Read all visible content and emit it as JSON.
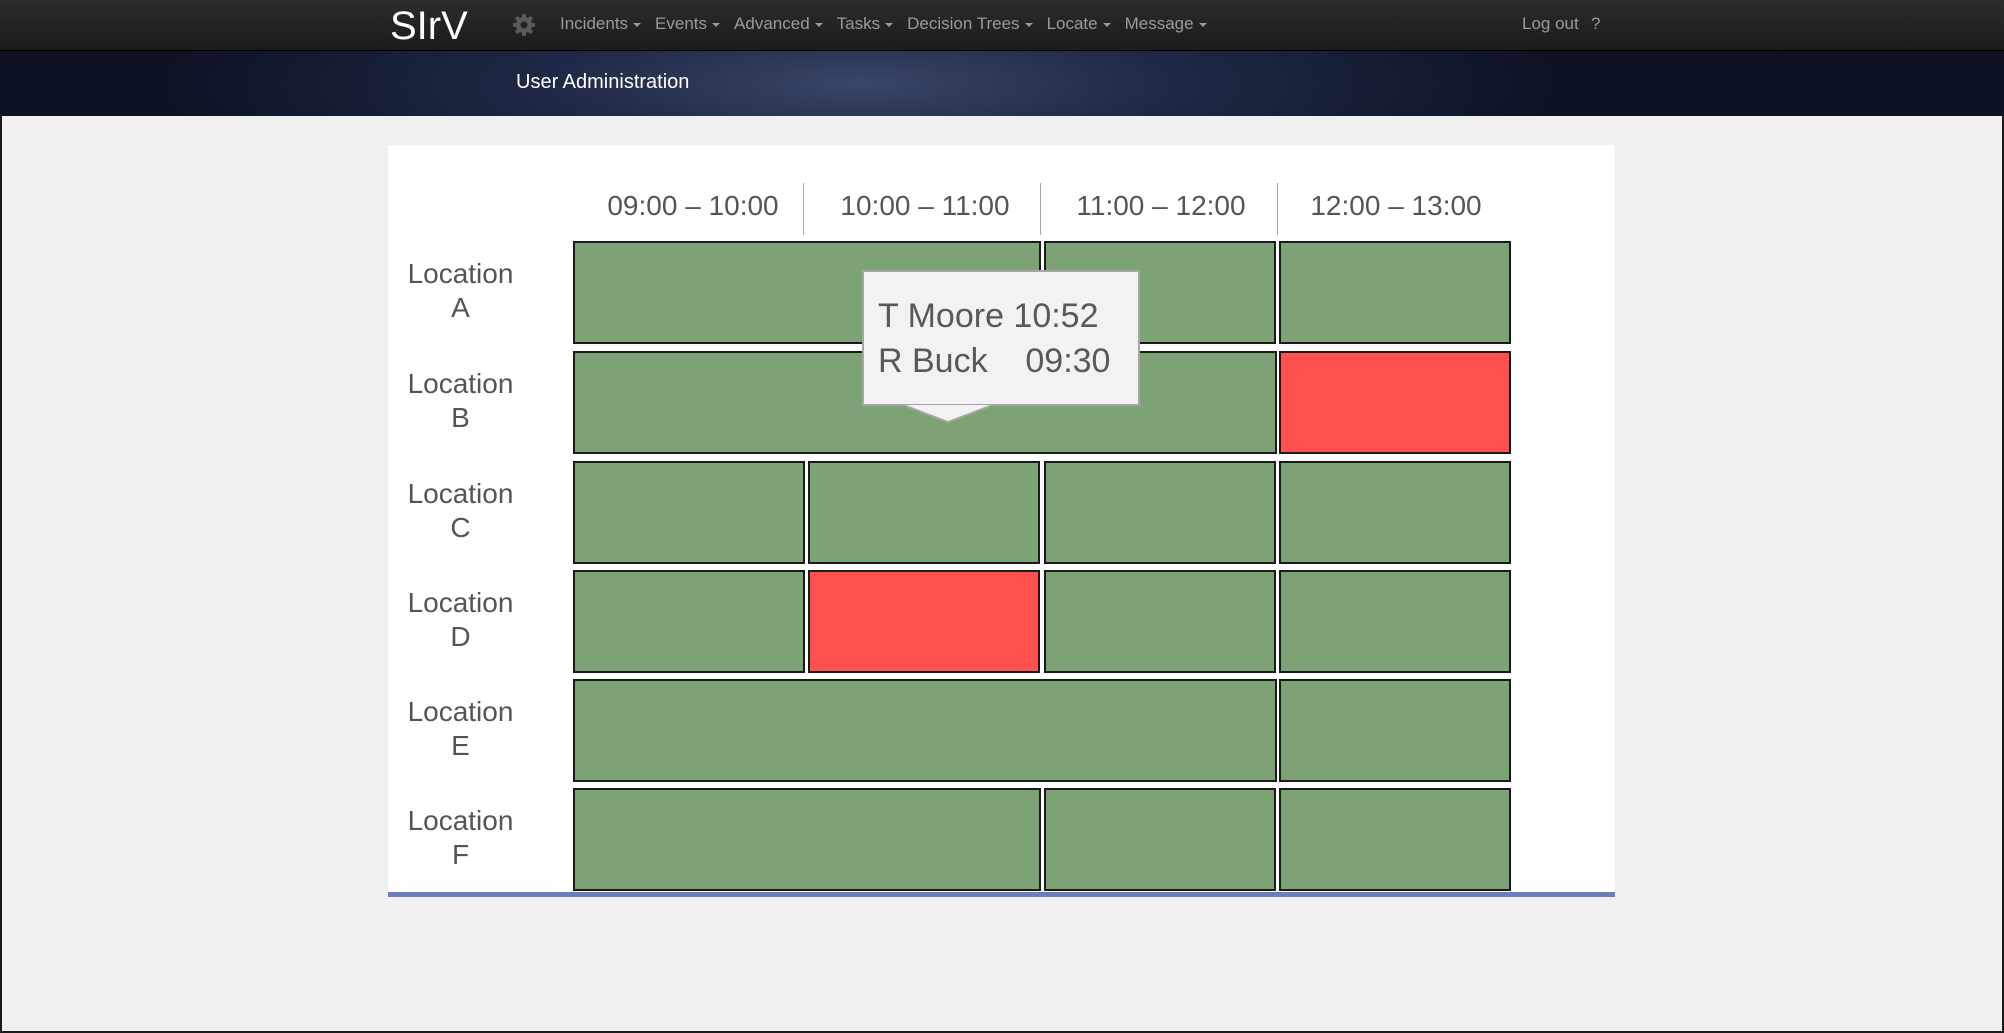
{
  "app": {
    "logo": "SIrV",
    "title": "User Administration"
  },
  "nav": {
    "items": [
      {
        "label": "Incidents"
      },
      {
        "label": "Events"
      },
      {
        "label": "Advanced"
      },
      {
        "label": "Tasks"
      },
      {
        "label": "Decision Trees"
      },
      {
        "label": "Locate"
      },
      {
        "label": "Message"
      }
    ],
    "logout": "Log out",
    "help": "?"
  },
  "schedule": {
    "time_slots": [
      "09:00 – 10:00",
      "10:00 – 11:00",
      "11:00 – 12:00",
      "12:00 – 13:00"
    ],
    "locations": [
      {
        "line1": "Location",
        "line2": "A"
      },
      {
        "line1": "Location",
        "line2": "B"
      },
      {
        "line1": "Location",
        "line2": "C"
      },
      {
        "line1": "Location",
        "line2": "D"
      },
      {
        "line1": "Location",
        "line2": "E"
      },
      {
        "line1": "Location",
        "line2": "F"
      }
    ],
    "rows": [
      [
        {
          "span": 2,
          "status": "ok"
        },
        {
          "span": 1,
          "status": "ok"
        },
        {
          "span": 1,
          "status": "ok"
        }
      ],
      [
        {
          "span": 3,
          "status": "ok"
        },
        {
          "span": 1,
          "status": "alert"
        }
      ],
      [
        {
          "span": 1,
          "status": "ok"
        },
        {
          "span": 1,
          "status": "ok"
        },
        {
          "span": 1,
          "status": "ok"
        },
        {
          "span": 1,
          "status": "ok"
        }
      ],
      [
        {
          "span": 1,
          "status": "ok"
        },
        {
          "span": 1,
          "status": "alert"
        },
        {
          "span": 1,
          "status": "ok"
        },
        {
          "span": 1,
          "status": "ok"
        }
      ],
      [
        {
          "span": 3,
          "status": "ok"
        },
        {
          "span": 1,
          "status": "ok"
        }
      ],
      [
        {
          "span": 2,
          "status": "ok"
        },
        {
          "span": 1,
          "status": "ok"
        },
        {
          "span": 1,
          "status": "ok"
        }
      ]
    ]
  },
  "tooltip": {
    "lines": [
      "T Moore 10:52",
      "R Buck    09:30"
    ]
  },
  "colors": {
    "ok": "#7da276",
    "alert": "#ff5050",
    "accent": "#6a7dbd"
  }
}
